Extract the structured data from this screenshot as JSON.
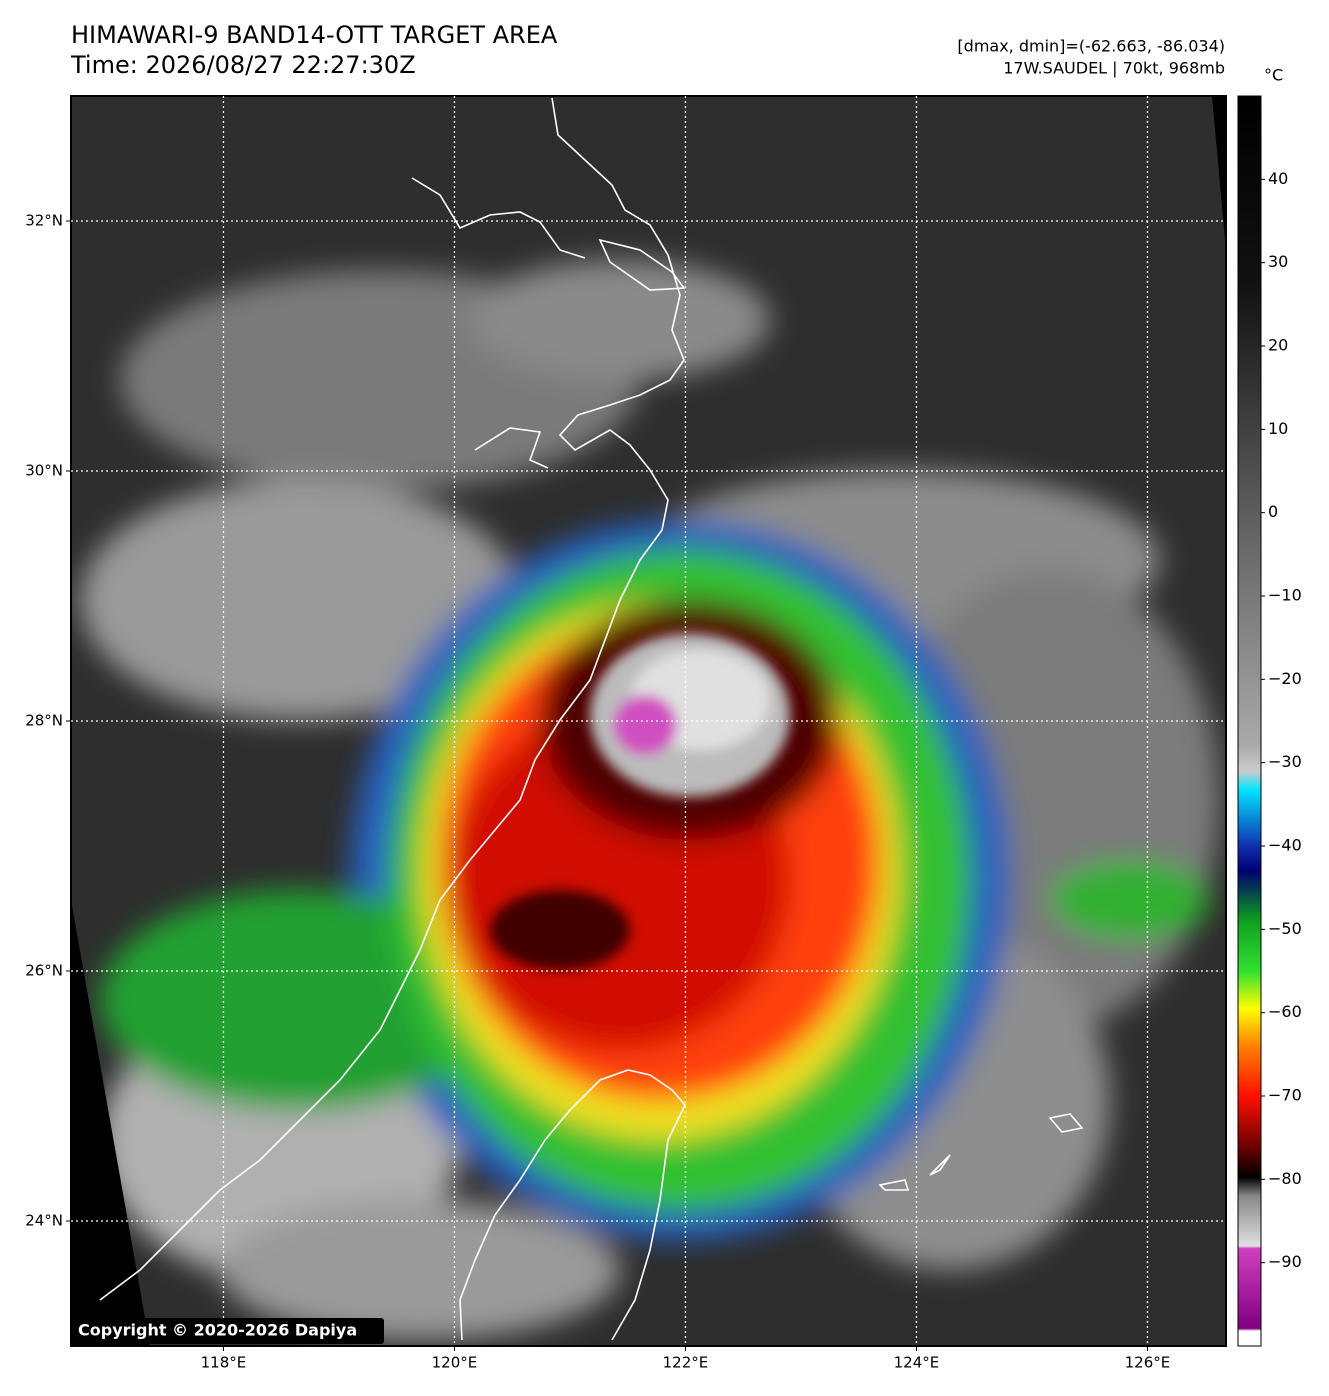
{
  "header": {
    "title": "HIMAWARI-9 BAND14-OTT TARGET AREA",
    "time": "Time: 2026/08/27 22:27:30Z",
    "info_line1": "[dmax, dmin]=(-62.663, -86.034)",
    "info_line2": "17W.SAUDEL | 70kt, 968mb"
  },
  "map": {
    "lon_range": [
      116.68,
      126.68
    ],
    "lat_range": [
      23,
      33
    ],
    "lon_ticks": [
      {
        "value": 118,
        "label": "118°E"
      },
      {
        "value": 120,
        "label": "120°E"
      },
      {
        "value": 122,
        "label": "122°E"
      },
      {
        "value": 124,
        "label": "124°E"
      },
      {
        "value": 126,
        "label": "126°E"
      }
    ],
    "lat_ticks": [
      {
        "value": 24,
        "label": "24°N"
      },
      {
        "value": 26,
        "label": "26°N"
      },
      {
        "value": 28,
        "label": "28°N"
      },
      {
        "value": 30,
        "label": "30°N"
      },
      {
        "value": 32,
        "label": "32°N"
      }
    ]
  },
  "colorbar": {
    "unit": "°C",
    "range": [
      -100,
      50
    ],
    "ticks": [
      40,
      30,
      20,
      10,
      0,
      {
        "value": -10,
        "label": "−10"
      },
      {
        "value": -20,
        "label": "−20"
      },
      {
        "value": -30,
        "label": "−30"
      },
      {
        "value": -40,
        "label": "−40"
      },
      {
        "value": -50,
        "label": "−50"
      },
      {
        "value": -60,
        "label": "−60"
      },
      {
        "value": -70,
        "label": "−70"
      },
      {
        "value": -80,
        "label": "−80"
      },
      {
        "value": -90,
        "label": "−90"
      }
    ]
  },
  "copyright": "Copyright © 2020-2026 Dapiya"
}
